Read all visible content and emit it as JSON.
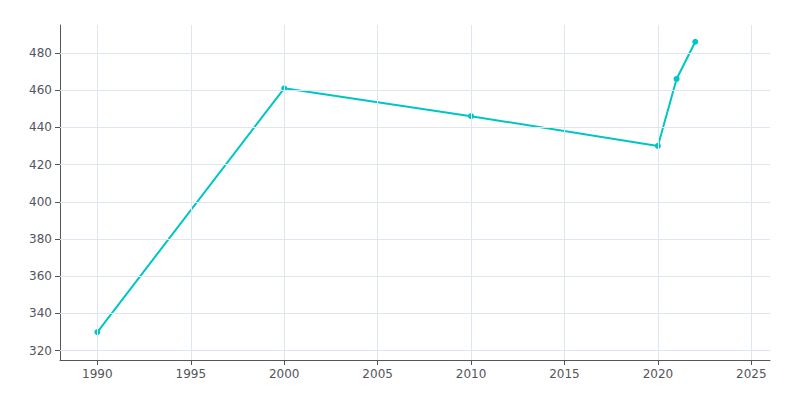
{
  "chart_data": {
    "type": "line",
    "x": [
      1990,
      2000,
      2010,
      2020,
      2021,
      2022
    ],
    "values": [
      330,
      461,
      446,
      430,
      466,
      486
    ],
    "color": "#00C5C5",
    "marker": "circle",
    "xlim": [
      1988,
      2026
    ],
    "ylim": [
      315,
      495
    ],
    "xticks": [
      1990,
      1995,
      2000,
      2005,
      2010,
      2015,
      2020,
      2025
    ],
    "yticks": [
      320,
      340,
      360,
      380,
      400,
      420,
      440,
      460,
      480
    ],
    "grid": true
  }
}
